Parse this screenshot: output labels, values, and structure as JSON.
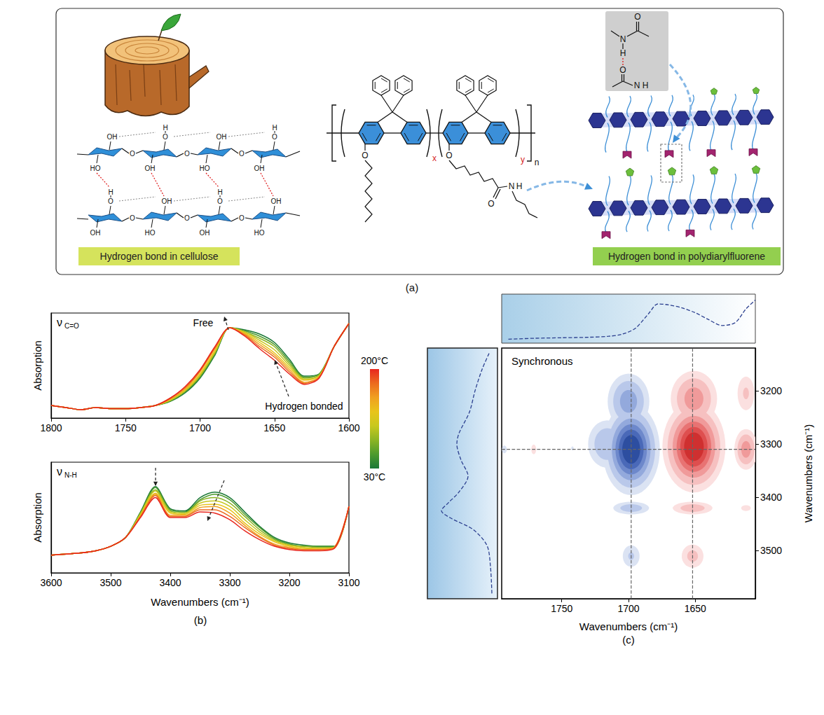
{
  "panel_labels": [
    "(a)",
    "(b)",
    "(c)"
  ],
  "diagram": {
    "captions": [
      "Hydrogen bond in cellulose",
      "Hydrogen bond in polydiarylfluorene"
    ],
    "repeat_subscripts": [
      "x",
      "y",
      "n"
    ],
    "atoms": {
      "oxygen": "O",
      "hydrogen": "H",
      "nitrogen": "N",
      "hydroxyl": "OH",
      "hydroxyl_reversed": "HO"
    }
  },
  "chart_data": [
    {
      "type": "line",
      "label": {
        "symbol": "ν",
        "subscript": "C=O"
      },
      "annotations": [
        "Free",
        "Hydrogen bonded"
      ],
      "ylabel": "Absorption",
      "xlim": [
        1800,
        1600
      ],
      "xticks": [
        1800,
        1750,
        1700,
        1650,
        1600
      ],
      "ylim": [
        0,
        1
      ],
      "tick_labels": "x",
      "grid": false,
      "x": [
        1800,
        1790,
        1780,
        1770,
        1760,
        1750,
        1740,
        1730,
        1720,
        1710,
        1700,
        1690,
        1680,
        1670,
        1660,
        1650,
        1640,
        1630,
        1620,
        1610,
        1600
      ],
      "series": [
        {
          "color": "#1b7837",
          "values": [
            0.12,
            0.1,
            0.08,
            0.1,
            0.09,
            0.09,
            0.1,
            0.12,
            0.16,
            0.24,
            0.38,
            0.6,
            0.86,
            0.84,
            0.8,
            0.72,
            0.56,
            0.4,
            0.42,
            0.68,
            0.9
          ]
        },
        {
          "color": "#4d9a2e",
          "values": [
            0.12,
            0.1,
            0.08,
            0.1,
            0.09,
            0.09,
            0.1,
            0.12,
            0.16,
            0.25,
            0.39,
            0.61,
            0.86,
            0.83,
            0.78,
            0.7,
            0.54,
            0.39,
            0.42,
            0.68,
            0.9
          ]
        },
        {
          "color": "#8cb424",
          "values": [
            0.12,
            0.1,
            0.08,
            0.1,
            0.09,
            0.09,
            0.1,
            0.12,
            0.17,
            0.26,
            0.4,
            0.62,
            0.86,
            0.82,
            0.76,
            0.68,
            0.52,
            0.38,
            0.41,
            0.68,
            0.9
          ]
        },
        {
          "color": "#c8c81e",
          "values": [
            0.12,
            0.1,
            0.08,
            0.1,
            0.09,
            0.09,
            0.1,
            0.12,
            0.17,
            0.26,
            0.41,
            0.63,
            0.86,
            0.82,
            0.74,
            0.65,
            0.5,
            0.37,
            0.4,
            0.68,
            0.9
          ]
        },
        {
          "color": "#e8c41a",
          "values": [
            0.12,
            0.1,
            0.08,
            0.1,
            0.09,
            0.09,
            0.1,
            0.12,
            0.18,
            0.27,
            0.42,
            0.64,
            0.86,
            0.81,
            0.72,
            0.62,
            0.48,
            0.36,
            0.4,
            0.68,
            0.9
          ]
        },
        {
          "color": "#f0a020",
          "values": [
            0.12,
            0.1,
            0.08,
            0.1,
            0.09,
            0.09,
            0.1,
            0.12,
            0.18,
            0.28,
            0.44,
            0.66,
            0.86,
            0.8,
            0.7,
            0.6,
            0.46,
            0.34,
            0.39,
            0.68,
            0.9
          ]
        },
        {
          "color": "#ec6a1e",
          "values": [
            0.12,
            0.1,
            0.08,
            0.1,
            0.09,
            0.09,
            0.1,
            0.12,
            0.19,
            0.29,
            0.45,
            0.67,
            0.86,
            0.79,
            0.68,
            0.58,
            0.44,
            0.33,
            0.39,
            0.68,
            0.9
          ]
        },
        {
          "color": "#e8261e",
          "values": [
            0.12,
            0.1,
            0.08,
            0.1,
            0.09,
            0.09,
            0.1,
            0.12,
            0.19,
            0.3,
            0.46,
            0.68,
            0.86,
            0.78,
            0.66,
            0.55,
            0.42,
            0.32,
            0.38,
            0.68,
            0.9
          ]
        }
      ],
      "colorbar": {
        "range": [
          30,
          200
        ],
        "ticks": [
          {
            "value": 200,
            "label": "200°C"
          },
          {
            "value": 30,
            "label": "30°C"
          }
        ],
        "colors": [
          "#1b7837",
          "#4d9a2e",
          "#8cb424",
          "#c8c81e",
          "#e8c41a",
          "#f0a020",
          "#ec6a1e",
          "#e8261e"
        ]
      }
    },
    {
      "type": "line",
      "label": {
        "symbol": "ν",
        "subscript": "N-H"
      },
      "xlabel": "Wavenumbers (cm⁻¹)",
      "ylabel": "Absorption",
      "xlim": [
        3600,
        3100
      ],
      "xticks": [
        3600,
        3500,
        3400,
        3300,
        3200,
        3100
      ],
      "ylim": [
        0,
        1
      ],
      "tick_labels": "x",
      "grid": false,
      "x": [
        3600,
        3575,
        3550,
        3525,
        3500,
        3475,
        3450,
        3425,
        3400,
        3375,
        3350,
        3325,
        3300,
        3275,
        3250,
        3225,
        3200,
        3175,
        3150,
        3125,
        3100
      ],
      "series": [
        {
          "color": "#1b7837",
          "values": [
            0.16,
            0.17,
            0.18,
            0.2,
            0.24,
            0.32,
            0.55,
            0.78,
            0.58,
            0.56,
            0.68,
            0.73,
            0.68,
            0.55,
            0.42,
            0.32,
            0.27,
            0.25,
            0.24,
            0.24,
            0.6
          ]
        },
        {
          "color": "#4d9a2e",
          "values": [
            0.16,
            0.17,
            0.18,
            0.2,
            0.24,
            0.32,
            0.54,
            0.77,
            0.57,
            0.55,
            0.66,
            0.71,
            0.66,
            0.53,
            0.41,
            0.31,
            0.26,
            0.24,
            0.24,
            0.24,
            0.6
          ]
        },
        {
          "color": "#8cb424",
          "values": [
            0.16,
            0.17,
            0.18,
            0.2,
            0.24,
            0.32,
            0.54,
            0.75,
            0.56,
            0.54,
            0.65,
            0.68,
            0.63,
            0.51,
            0.39,
            0.3,
            0.25,
            0.24,
            0.23,
            0.23,
            0.6
          ]
        },
        {
          "color": "#c8c81e",
          "values": [
            0.16,
            0.17,
            0.18,
            0.2,
            0.24,
            0.32,
            0.53,
            0.74,
            0.55,
            0.54,
            0.63,
            0.65,
            0.6,
            0.48,
            0.37,
            0.29,
            0.25,
            0.23,
            0.22,
            0.23,
            0.6
          ]
        },
        {
          "color": "#e8c41a",
          "values": [
            0.16,
            0.17,
            0.18,
            0.2,
            0.24,
            0.32,
            0.52,
            0.72,
            0.54,
            0.53,
            0.61,
            0.62,
            0.57,
            0.45,
            0.35,
            0.28,
            0.24,
            0.22,
            0.22,
            0.23,
            0.6
          ]
        },
        {
          "color": "#f0a020",
          "values": [
            0.16,
            0.17,
            0.18,
            0.2,
            0.24,
            0.32,
            0.51,
            0.71,
            0.52,
            0.52,
            0.59,
            0.6,
            0.54,
            0.43,
            0.33,
            0.26,
            0.23,
            0.21,
            0.21,
            0.23,
            0.6
          ]
        },
        {
          "color": "#ec6a1e",
          "values": [
            0.16,
            0.17,
            0.18,
            0.2,
            0.24,
            0.32,
            0.51,
            0.7,
            0.51,
            0.51,
            0.57,
            0.57,
            0.51,
            0.41,
            0.32,
            0.25,
            0.22,
            0.21,
            0.21,
            0.22,
            0.6
          ]
        },
        {
          "color": "#e8261e",
          "values": [
            0.16,
            0.17,
            0.18,
            0.2,
            0.24,
            0.32,
            0.5,
            0.68,
            0.5,
            0.5,
            0.55,
            0.54,
            0.48,
            0.38,
            0.3,
            0.24,
            0.21,
            0.2,
            0.2,
            0.22,
            0.6
          ]
        }
      ]
    },
    {
      "type": "contour",
      "title": "Synchronous",
      "xlabel": "Wavenumbers (cm⁻¹)",
      "ylabel": "Wavenumbers (cm⁻¹)",
      "xlim": [
        1795,
        1605
      ],
      "xticks": [
        1750,
        1700,
        1650
      ],
      "ylim": [
        3590,
        3120
      ],
      "yticks": [
        3200,
        3300,
        3400,
        3500
      ],
      "guides": {
        "x": [
          1698,
          1652
        ],
        "y": [
          3310
        ]
      },
      "levels": [
        0.1,
        0.2,
        0.35,
        0.5,
        0.65,
        0.8
      ],
      "negative": {
        "colors": [
          "#dbe3f3",
          "#b9c8ea",
          "#93a9dc",
          "#6d88cb",
          "#4a69b8",
          "#2d4ea0"
        ],
        "peaks": [
          {
            "x": 1698,
            "y": 3310,
            "value": -1.0,
            "x_width": 10,
            "y_width": 40
          },
          {
            "x": 1700,
            "y": 3220,
            "value": -0.45,
            "x_width": 9,
            "y_width": 30
          },
          {
            "x": 1716,
            "y": 3300,
            "value": -0.35,
            "x_width": 9,
            "y_width": 28
          },
          {
            "x": 1698,
            "y": 3420,
            "value": -0.3,
            "x_width": 9,
            "y_width": 8
          },
          {
            "x": 1698,
            "y": 3510,
            "value": -0.22,
            "x_width": 5,
            "y_width": 16
          },
          {
            "x": 1742,
            "y": 3308,
            "value": -0.12,
            "x_width": 1.5,
            "y_width": 6
          },
          {
            "x": 1793,
            "y": 3310,
            "value": -0.15,
            "x_width": 2,
            "y_width": 8
          }
        ]
      },
      "positive": {
        "colors": [
          "#fbe0e0",
          "#f6c0c0",
          "#f09a9a",
          "#e87373",
          "#de4f4f",
          "#cf3030"
        ],
        "peaks": [
          {
            "x": 1651,
            "y": 3305,
            "value": 1.0,
            "x_width": 11,
            "y_width": 40
          },
          {
            "x": 1651,
            "y": 3215,
            "value": 0.45,
            "x_width": 10,
            "y_width": 30
          },
          {
            "x": 1612,
            "y": 3310,
            "value": 0.45,
            "x_width": 5,
            "y_width": 22
          },
          {
            "x": 1612,
            "y": 3205,
            "value": 0.22,
            "x_width": 5,
            "y_width": 25
          },
          {
            "x": 1652,
            "y": 3420,
            "value": 0.3,
            "x_width": 10,
            "y_width": 8
          },
          {
            "x": 1612,
            "y": 3420,
            "value": 0.15,
            "x_width": 4,
            "y_width": 6
          },
          {
            "x": 1652,
            "y": 3510,
            "value": 0.25,
            "x_width": 6,
            "y_width": 16
          },
          {
            "x": 1771,
            "y": 3310,
            "value": 0.15,
            "x_width": 2,
            "y_width": 10
          }
        ]
      },
      "top_spectrum": {
        "x": [
          1790,
          1770,
          1750,
          1730,
          1715,
          1705,
          1695,
          1685,
          1678,
          1670,
          1660,
          1650,
          1640,
          1630,
          1620,
          1612,
          1605
        ],
        "values": [
          0.08,
          0.1,
          0.11,
          0.12,
          0.14,
          0.18,
          0.3,
          0.6,
          0.8,
          0.78,
          0.72,
          0.62,
          0.48,
          0.36,
          0.42,
          0.7,
          0.88
        ],
        "ylim": [
          0,
          1
        ],
        "color": "#2b3f8f",
        "line_style": "dashed"
      },
      "side_spectrum": {
        "y": [
          3130,
          3160,
          3200,
          3240,
          3280,
          3300,
          3330,
          3360,
          3390,
          3410,
          3425,
          3440,
          3460,
          3490,
          3530,
          3580
        ],
        "values": [
          0.12,
          0.22,
          0.32,
          0.4,
          0.55,
          0.58,
          0.52,
          0.42,
          0.55,
          0.7,
          0.8,
          0.65,
          0.35,
          0.15,
          0.1,
          0.08
        ],
        "xlim": [
          1,
          0
        ],
        "color": "#2b3f8f",
        "line_style": "dashed"
      }
    }
  ]
}
